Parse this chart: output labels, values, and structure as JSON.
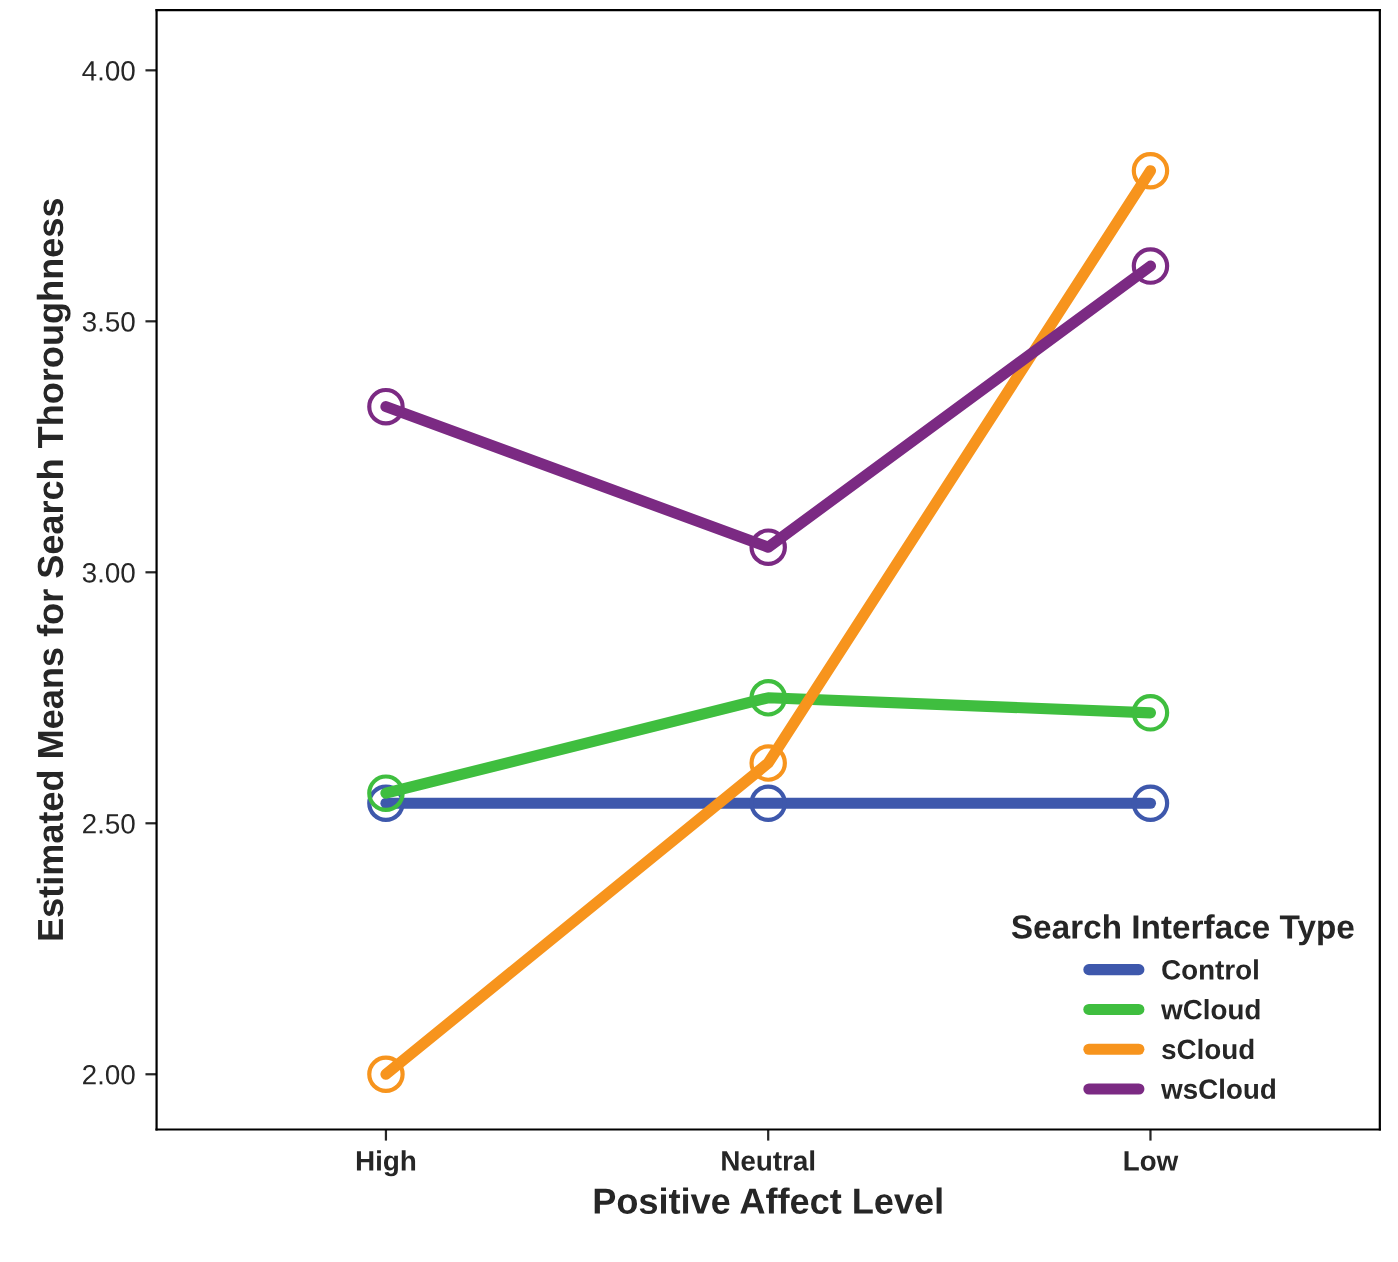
{
  "chart_data": {
    "type": "line",
    "xlabel": "Positive Affect Level",
    "ylabel": "Estimated Means for Search Thoroughness",
    "legend_title": "Search Interface Type",
    "categories": [
      "High",
      "Neutral",
      "Low"
    ],
    "series": [
      {
        "name": "Control",
        "color": "#3e58ac",
        "values": [
          2.54,
          2.54,
          2.54
        ]
      },
      {
        "name": "wCloud",
        "color": "#3fbe3f",
        "values": [
          2.56,
          2.75,
          2.72
        ]
      },
      {
        "name": "sCloud",
        "color": "#f7941d",
        "values": [
          2.0,
          2.62,
          3.8
        ]
      },
      {
        "name": "wsCloud",
        "color": "#7b2a83",
        "values": [
          3.33,
          3.05,
          3.61
        ]
      }
    ],
    "ylim": [
      1.89,
      4.12
    ],
    "yticks": [
      {
        "value": 2,
        "label": "2.00"
      },
      {
        "value": 2.5,
        "label": "2.50"
      },
      {
        "value": 3,
        "label": "3.00"
      },
      {
        "value": 3.5,
        "label": "3.50"
      },
      {
        "value": 4,
        "label": "4.00"
      }
    ],
    "marker": "circle",
    "line_style": "solid",
    "legend": "bottom right",
    "grid": false
  }
}
